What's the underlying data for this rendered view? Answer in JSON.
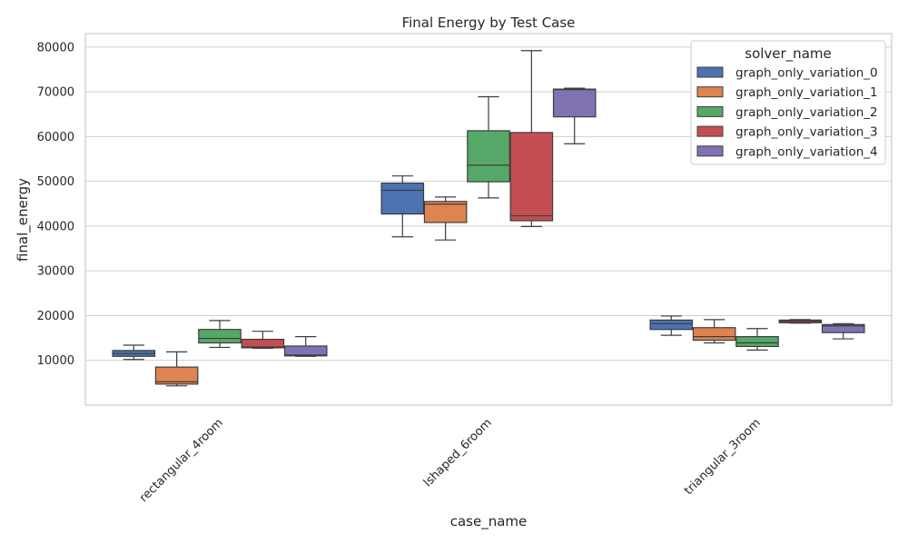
{
  "chart_data": {
    "type": "box",
    "title": "Final Energy by Test Case",
    "xlabel": "case_name",
    "ylabel": "final_energy",
    "ylim": [
      0,
      83000
    ],
    "yticks": [
      10000,
      20000,
      30000,
      40000,
      50000,
      60000,
      70000,
      80000
    ],
    "categories": [
      "rectangular_4room",
      "lshaped_6room",
      "triangular_3room"
    ],
    "legend": {
      "title": "solver_name",
      "position": "top-right"
    },
    "series": [
      {
        "name": "graph_only_variation_0",
        "color": "#4c72b0",
        "boxes": [
          {
            "min": 10200,
            "q1": 10900,
            "median": 11500,
            "q3": 12200,
            "max": 13400
          },
          {
            "min": 37600,
            "q1": 42700,
            "median": 48000,
            "q3": 49600,
            "max": 51200
          },
          {
            "min": 15600,
            "q1": 16900,
            "median": 18200,
            "q3": 19000,
            "max": 19900
          }
        ]
      },
      {
        "name": "graph_only_variation_1",
        "color": "#dd8452",
        "boxes": [
          {
            "min": 4300,
            "q1": 4700,
            "median": 5200,
            "q3": 8500,
            "max": 11900
          },
          {
            "min": 36900,
            "q1": 40800,
            "median": 44900,
            "q3": 45500,
            "max": 46500
          },
          {
            "min": 13900,
            "q1": 14500,
            "median": 15300,
            "q3": 17300,
            "max": 19100
          }
        ]
      },
      {
        "name": "graph_only_variation_2",
        "color": "#55a868",
        "boxes": [
          {
            "min": 12900,
            "q1": 13900,
            "median": 14900,
            "q3": 16900,
            "max": 18900
          },
          {
            "min": 46300,
            "q1": 49900,
            "median": 53600,
            "q3": 61300,
            "max": 68900
          },
          {
            "min": 12300,
            "q1": 13100,
            "median": 13900,
            "q3": 15300,
            "max": 17100
          }
        ]
      },
      {
        "name": "graph_only_variation_3",
        "color": "#c44e52",
        "boxes": [
          {
            "min": 12700,
            "q1": 12800,
            "median": 13000,
            "q3": 14700,
            "max": 16500
          },
          {
            "min": 39900,
            "q1": 41200,
            "median": 42300,
            "q3": 60900,
            "max": 79200
          },
          {
            "min": 18300,
            "q1": 18400,
            "median": 18700,
            "q3": 19000,
            "max": 19100
          }
        ]
      },
      {
        "name": "graph_only_variation_4",
        "color": "#8172b3",
        "boxes": [
          {
            "min": 10900,
            "q1": 11000,
            "median": 11200,
            "q3": 13200,
            "max": 15300
          },
          {
            "min": 58400,
            "q1": 64400,
            "median": 70500,
            "q3": 70600,
            "max": 70800
          },
          {
            "min": 14800,
            "q1": 16200,
            "median": 17700,
            "q3": 18000,
            "max": 18200
          }
        ]
      }
    ]
  }
}
